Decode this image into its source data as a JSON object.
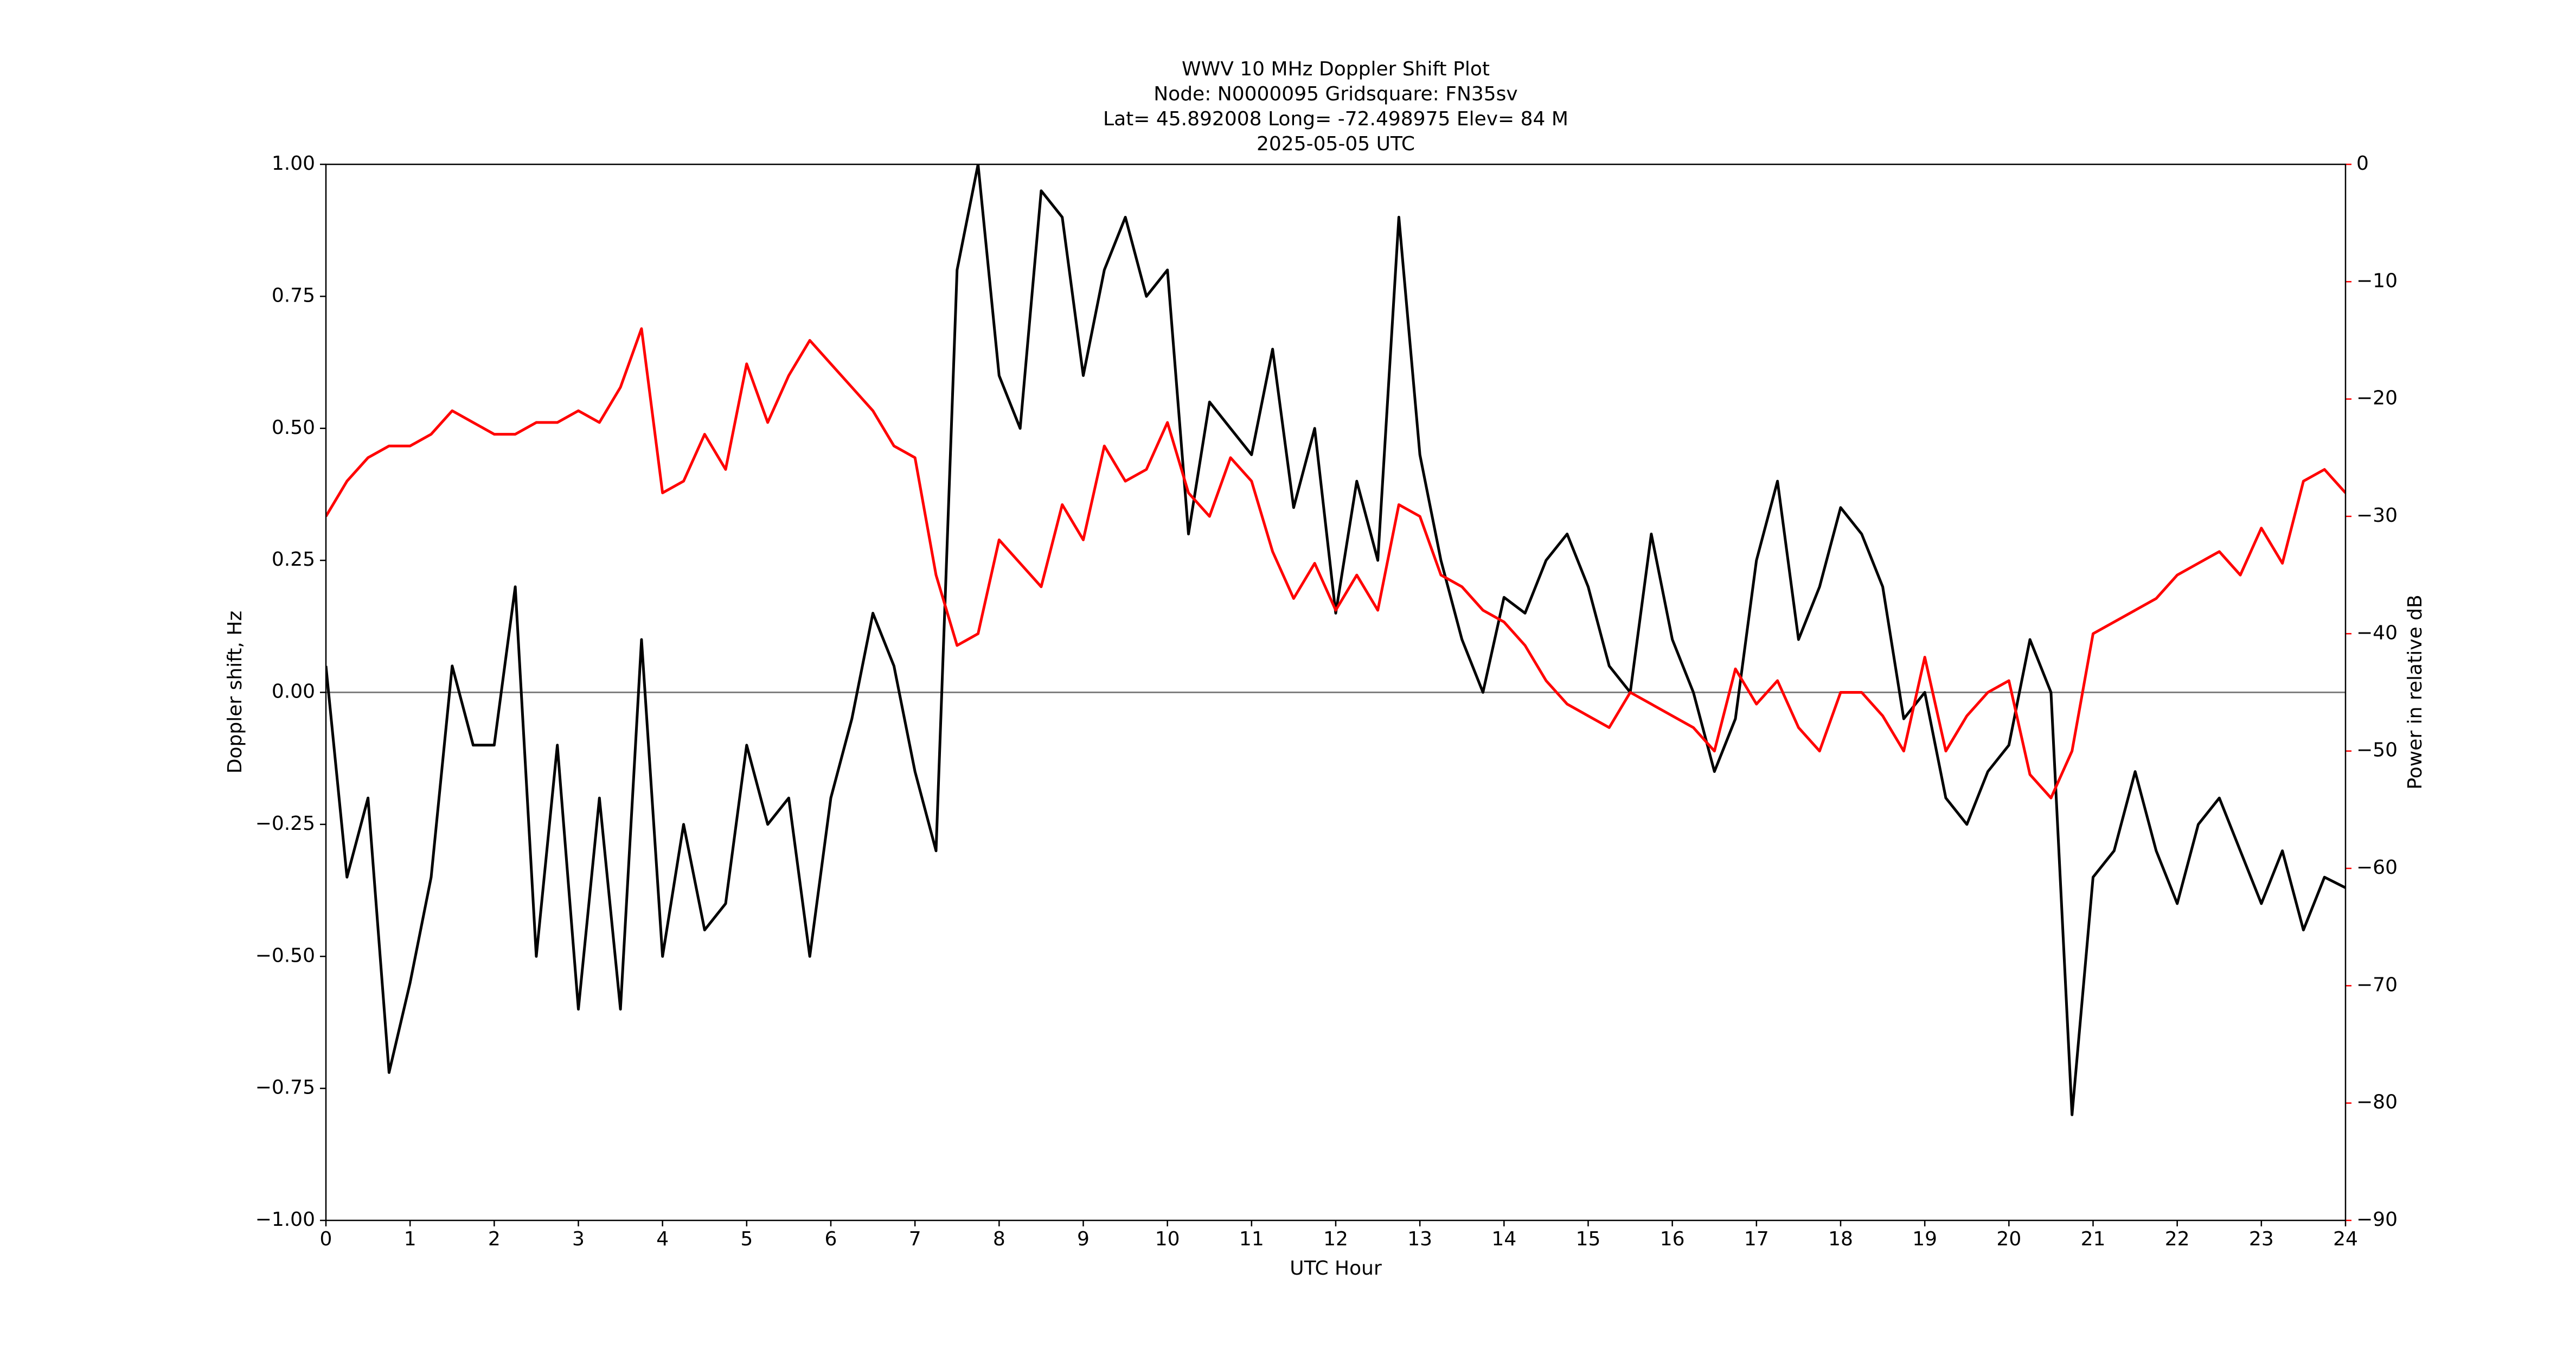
{
  "chart_data": {
    "type": "line",
    "title": [
      "WWV 10 MHz Doppler Shift Plot",
      "Node:  N0000095     Gridsquare:  FN35sv",
      "Lat= 45.892008    Long= -72.498975    Elev= 84 M",
      "2025-05-05  UTC"
    ],
    "x_label": "UTC Hour",
    "y_label": "Doppler shift, Hz",
    "y2_label": "Power in relative dB",
    "x": [
      0,
      0.25,
      0.5,
      0.75,
      1,
      1.25,
      1.5,
      1.75,
      2,
      2.25,
      2.5,
      2.75,
      3,
      3.25,
      3.5,
      3.75,
      4,
      4.25,
      4.5,
      4.75,
      5,
      5.25,
      5.5,
      5.75,
      6,
      6.25,
      6.5,
      6.75,
      7,
      7.25,
      7.5,
      7.75,
      8,
      8.25,
      8.5,
      8.75,
      9,
      9.25,
      9.5,
      9.75,
      10,
      10.25,
      10.5,
      10.75,
      11,
      11.25,
      11.5,
      11.75,
      12,
      12.25,
      12.5,
      12.75,
      13,
      13.25,
      13.5,
      13.75,
      14,
      14.25,
      14.5,
      14.75,
      15,
      15.25,
      15.5,
      15.75,
      16,
      16.25,
      16.5,
      16.75,
      17,
      17.25,
      17.5,
      17.75,
      18,
      18.25,
      18.5,
      18.75,
      19,
      19.25,
      19.5,
      19.75,
      20,
      20.25,
      20.5,
      20.75,
      21,
      21.25,
      21.5,
      21.75,
      22,
      22.25,
      22.5,
      22.75,
      23,
      23.25,
      23.5,
      23.75,
      24
    ],
    "series": [
      {
        "name": "Doppler shift",
        "color": "#000000",
        "axis": "y",
        "values": [
          0.05,
          -0.35,
          -0.2,
          -0.72,
          -0.55,
          -0.35,
          0.05,
          -0.1,
          -0.1,
          0.2,
          -0.5,
          -0.1,
          -0.6,
          -0.2,
          -0.6,
          0.1,
          -0.5,
          -0.25,
          -0.45,
          -0.4,
          -0.1,
          -0.25,
          -0.2,
          -0.5,
          -0.2,
          -0.05,
          0.15,
          0.05,
          -0.15,
          -0.3,
          0.8,
          1.0,
          0.6,
          0.5,
          0.95,
          0.9,
          0.6,
          0.8,
          0.9,
          0.75,
          0.8,
          0.3,
          0.55,
          0.5,
          0.45,
          0.65,
          0.35,
          0.5,
          0.15,
          0.4,
          0.25,
          0.9,
          0.45,
          0.25,
          0.1,
          0.0,
          0.18,
          0.15,
          0.25,
          0.3,
          0.2,
          0.05,
          0.0,
          0.3,
          0.1,
          0.0,
          -0.15,
          -0.05,
          0.25,
          0.4,
          0.1,
          0.2,
          0.35,
          0.3,
          0.2,
          -0.05,
          0.0,
          -0.2,
          -0.25,
          -0.15,
          -0.1,
          0.1,
          0.0,
          -0.8,
          -0.35,
          -0.3,
          -0.15,
          -0.3,
          -0.4,
          -0.25,
          -0.2,
          -0.3,
          -0.4,
          -0.3,
          -0.45,
          -0.35,
          -0.37
        ]
      },
      {
        "name": "Power",
        "color": "#ff0000",
        "axis": "y2",
        "values": [
          -30,
          -27,
          -25,
          -24,
          -24,
          -23,
          -21,
          -22,
          -23,
          -23,
          -22,
          -22,
          -21,
          -22,
          -19,
          -14,
          -28,
          -27,
          -23,
          -26,
          -17,
          -22,
          -18,
          -15,
          -17,
          -19,
          -21,
          -24,
          -25,
          -35,
          -41,
          -40,
          -32,
          -34,
          -36,
          -29,
          -32,
          -24,
          -27,
          -26,
          -22,
          -28,
          -30,
          -25,
          -27,
          -33,
          -37,
          -34,
          -38,
          -35,
          -38,
          -29,
          -30,
          -35,
          -36,
          -38,
          -39,
          -41,
          -44,
          -46,
          -47,
          -48,
          -45,
          -46,
          -47,
          -48,
          -50,
          -43,
          -46,
          -44,
          -48,
          -50,
          -45,
          -45,
          -47,
          -50,
          -42,
          -50,
          -47,
          -45,
          -44,
          -52,
          -54,
          -50,
          -40,
          -39,
          -38,
          -37,
          -35,
          -34,
          -33,
          -35,
          -31,
          -34,
          -27,
          -26,
          -28
        ]
      }
    ],
    "xlim": [
      0,
      24
    ],
    "xticks": [
      0,
      1,
      2,
      3,
      4,
      5,
      6,
      7,
      8,
      9,
      10,
      11,
      12,
      13,
      14,
      15,
      16,
      17,
      18,
      19,
      20,
      21,
      22,
      23,
      24
    ],
    "ylim": [
      -1,
      1
    ],
    "yticks": [
      {
        "value": -1,
        "label": "−1.00"
      },
      {
        "value": -0.75,
        "label": "−0.75"
      },
      {
        "value": -0.5,
        "label": "−0.50"
      },
      {
        "value": -0.25,
        "label": "−0.25"
      },
      {
        "value": 0,
        "label": "0.00"
      },
      {
        "value": 0.25,
        "label": "0.25"
      },
      {
        "value": 0.5,
        "label": "0.50"
      },
      {
        "value": 0.75,
        "label": "0.75"
      },
      {
        "value": 1,
        "label": "1.00"
      }
    ],
    "y2lim": [
      -90,
      0
    ],
    "y2ticks": [
      {
        "value": -90,
        "label": "−90"
      },
      {
        "value": -80,
        "label": "−80"
      },
      {
        "value": -70,
        "label": "−70"
      },
      {
        "value": -60,
        "label": "−60"
      },
      {
        "value": -50,
        "label": "−50"
      },
      {
        "value": -40,
        "label": "−40"
      },
      {
        "value": -30,
        "label": "−30"
      },
      {
        "value": -20,
        "label": "−20"
      },
      {
        "value": -10,
        "label": "−10"
      },
      0
    ],
    "y2_color": "#ff0000",
    "reference_line": 0,
    "reference_line_color": "#808080"
  }
}
